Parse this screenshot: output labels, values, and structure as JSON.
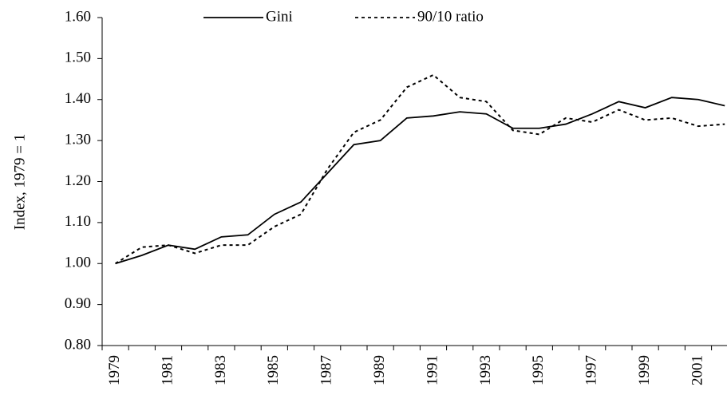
{
  "chart_data": {
    "type": "line",
    "y_label": "Index, 1979 = 1",
    "categories": [
      "1979",
      null,
      "1981",
      null,
      "1983",
      null,
      "1985",
      null,
      "1987",
      null,
      "1989",
      null,
      "1991",
      null,
      "1993",
      null,
      "1995",
      null,
      "1997",
      null,
      "1999",
      null,
      "2001",
      null
    ],
    "series": [
      {
        "name": "Gini",
        "color": "#000000",
        "line_style": "solid",
        "values": [
          1.0,
          1.02,
          1.045,
          1.035,
          1.065,
          1.07,
          1.12,
          1.15,
          1.22,
          1.29,
          1.3,
          1.355,
          1.36,
          1.37,
          1.365,
          1.33,
          1.33,
          1.34,
          1.365,
          1.395,
          1.38,
          1.405,
          1.4,
          1.385
        ]
      },
      {
        "name": "90/10 ratio",
        "color": "#000000",
        "line_style": "dotted",
        "values": [
          1.0,
          1.04,
          1.045,
          1.025,
          1.045,
          1.045,
          1.09,
          1.12,
          1.23,
          1.32,
          1.35,
          1.43,
          1.46,
          1.405,
          1.395,
          1.325,
          1.315,
          1.355,
          1.345,
          1.375,
          1.35,
          1.355,
          1.335,
          1.34
        ]
      }
    ],
    "ylim": [
      0.8,
      1.6
    ],
    "yticks": [
      {
        "value": 0.8,
        "label": "0.80"
      },
      {
        "value": 0.9,
        "label": "0.90"
      },
      {
        "value": 1.0,
        "label": "1.00"
      },
      {
        "value": 1.1,
        "label": "1.10"
      },
      {
        "value": 1.2,
        "label": "1.20"
      },
      {
        "value": 1.3,
        "label": "1.30"
      },
      {
        "value": 1.4,
        "label": "1.40"
      },
      {
        "value": 1.5,
        "label": "1.50"
      },
      {
        "value": 1.6,
        "label": "1.60"
      }
    ],
    "grid": false,
    "legend": "top"
  }
}
